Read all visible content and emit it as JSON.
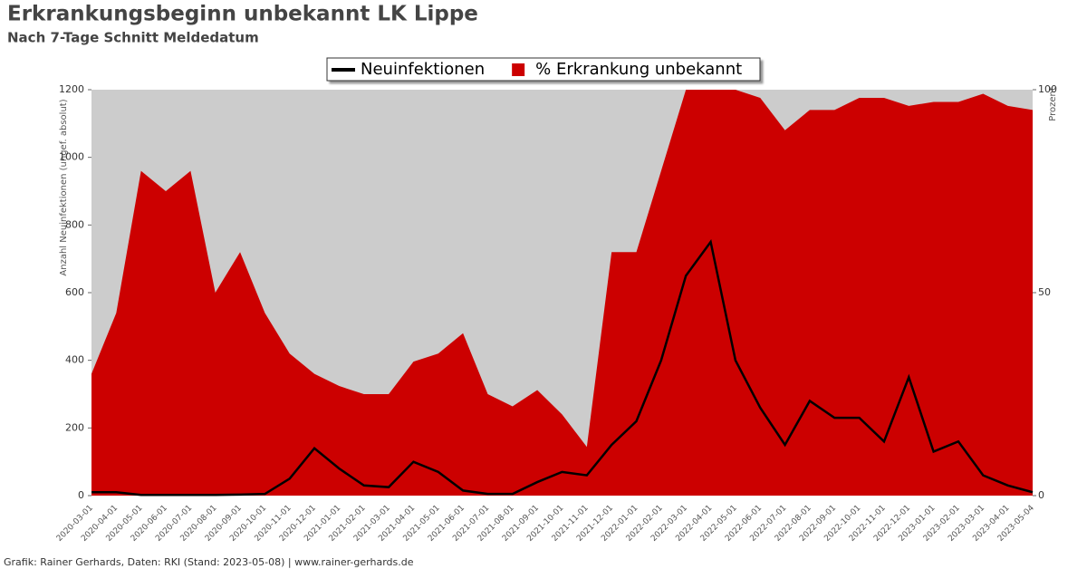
{
  "chart_data": {
    "type": "line_area",
    "title": "Erkrankungsbeginn unbekannt LK Lippe",
    "subtitle": "Nach 7-Tage Schnitt Meldedatum",
    "y_label": "Anzahl Neuinfektionen (ungef. absolut)",
    "y2_label": "Prozent",
    "footer": "Grafik: Rainer Gerhards, Daten: RKI (Stand: 2023-05-08) | www.rainer-gerhards.de",
    "categories": [
      "2020-03-01",
      "2020-04-01",
      "2020-05-01",
      "2020-06-01",
      "2020-07-01",
      "2020-08-01",
      "2020-09-01",
      "2020-10-01",
      "2020-11-01",
      "2020-12-01",
      "2021-01-01",
      "2021-02-01",
      "2021-03-01",
      "2021-04-01",
      "2021-05-01",
      "2021-06-01",
      "2021-07-01",
      "2021-08-01",
      "2021-09-01",
      "2021-10-01",
      "2021-11-01",
      "2021-12-01",
      "2022-01-01",
      "2022-02-01",
      "2022-03-01",
      "2022-04-01",
      "2022-05-01",
      "2022-06-01",
      "2022-07-01",
      "2022-08-01",
      "2022-09-01",
      "2022-10-01",
      "2022-11-01",
      "2022-12-01",
      "2023-01-01",
      "2023-02-01",
      "2023-03-01",
      "2023-04-01",
      "2023-05-04"
    ],
    "series": [
      {
        "name": "% Erkrankung unbekannt",
        "color": "#cc0000",
        "axis": "y2",
        "kind": "area",
        "values": [
          30,
          45,
          80,
          75,
          80,
          50,
          60,
          45,
          35,
          30,
          27,
          25,
          25,
          33,
          35,
          40,
          25,
          22,
          26,
          20,
          12,
          60,
          60,
          80,
          100,
          100,
          100,
          98,
          90,
          95,
          95,
          98,
          98,
          96,
          97,
          97,
          99,
          96,
          95
        ]
      },
      {
        "name": "Neuinfektionen",
        "color": "#000000",
        "kind": "line",
        "values": [
          10,
          10,
          2,
          2,
          2,
          2,
          3,
          5,
          50,
          140,
          80,
          30,
          25,
          100,
          70,
          15,
          5,
          5,
          40,
          70,
          60,
          150,
          220,
          400,
          650,
          750,
          400,
          260,
          150,
          280,
          230,
          230,
          160,
          350,
          130,
          160,
          60,
          30,
          10
        ]
      }
    ],
    "ylim": [
      0,
      1200
    ],
    "yticks": [
      0,
      200,
      400,
      600,
      800,
      1000,
      1200
    ],
    "y2lim": [
      0,
      100
    ],
    "y2ticks": [
      0,
      50,
      100
    ],
    "grid": false,
    "legend": "top"
  }
}
